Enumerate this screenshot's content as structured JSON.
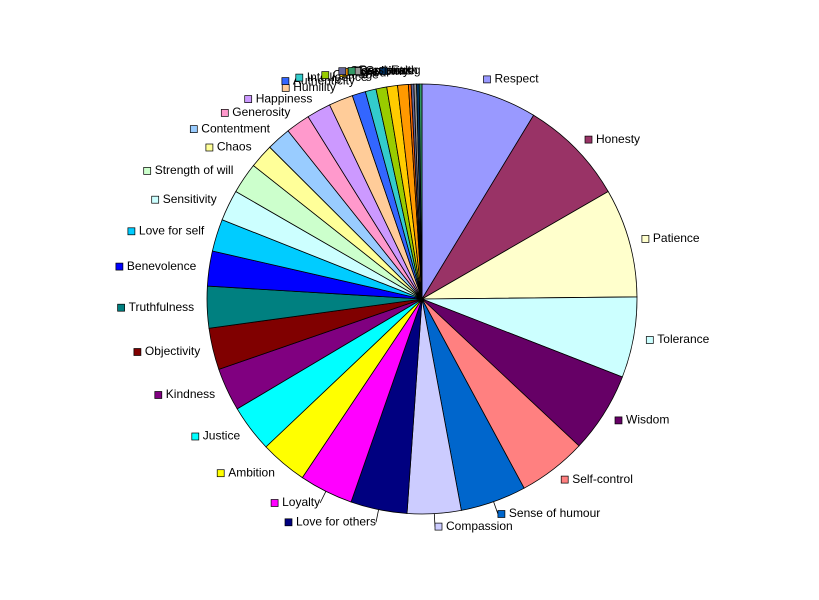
{
  "chart_data": {
    "type": "pie",
    "title": "",
    "slices": [
      {
        "label": "Respect",
        "value": 8.6,
        "color": "#9999ff"
      },
      {
        "label": "Honesty",
        "value": 7.9,
        "color": "#993366"
      },
      {
        "label": "Patience",
        "value": 8.1,
        "color": "#ffffcc"
      },
      {
        "label": "Tolerance",
        "value": 6.0,
        "color": "#ccffff"
      },
      {
        "label": "Wisdom",
        "value": 6.0,
        "color": "#660066"
      },
      {
        "label": "Self-control",
        "value": 5.1,
        "color": "#ff8080"
      },
      {
        "label": "Sense of humour",
        "value": 4.9,
        "color": "#0066cc"
      },
      {
        "label": "Compassion",
        "value": 4.0,
        "color": "#ccccff"
      },
      {
        "label": "Love for others",
        "value": 4.2,
        "color": "#000080"
      },
      {
        "label": "Loyalty",
        "value": 4.0,
        "color": "#ff00ff"
      },
      {
        "label": "Ambition",
        "value": 3.5,
        "color": "#ffff00"
      },
      {
        "label": "Justice",
        "value": 3.5,
        "color": "#00ffff"
      },
      {
        "label": "Kindness",
        "value": 3.2,
        "color": "#800080"
      },
      {
        "label": "Objectivity",
        "value": 3.1,
        "color": "#800000"
      },
      {
        "label": "Truthfulness",
        "value": 3.1,
        "color": "#008080"
      },
      {
        "label": "Benevolence",
        "value": 2.6,
        "color": "#0000ff"
      },
      {
        "label": "Love for self",
        "value": 2.4,
        "color": "#00ccff"
      },
      {
        "label": "Sensitivity",
        "value": 2.3,
        "color": "#ccffff"
      },
      {
        "label": "Strength of will",
        "value": 2.3,
        "color": "#ccffcc"
      },
      {
        "label": "Chaos",
        "value": 1.8,
        "color": "#ffff99"
      },
      {
        "label": "Contentment",
        "value": 1.8,
        "color": "#99ccff"
      },
      {
        "label": "Generosity",
        "value": 1.8,
        "color": "#ff99cc"
      },
      {
        "label": "Happiness",
        "value": 1.8,
        "color": "#cc99ff"
      },
      {
        "label": "Humility",
        "value": 1.8,
        "color": "#ffcc99"
      },
      {
        "label": "Authenticity",
        "value": 1.0,
        "color": "#3366ff"
      },
      {
        "label": "Intelligence",
        "value": 0.8,
        "color": "#33cccc"
      },
      {
        "label": "Courage",
        "value": 0.8,
        "color": "#99cc00"
      },
      {
        "label": "Honour",
        "value": 0.8,
        "color": "#ffcc00"
      },
      {
        "label": "Freedom",
        "value": 0.8,
        "color": "#ff9900"
      },
      {
        "label": "Creativity",
        "value": 0.2,
        "color": "#ff6600"
      },
      {
        "label": "Cleanliness",
        "value": 0.2,
        "color": "#666699"
      },
      {
        "label": "Gratitude",
        "value": 0.2,
        "color": "#969696"
      },
      {
        "label": "Faith",
        "value": 0.2,
        "color": "#003366"
      },
      {
        "label": "Persian rug",
        "value": 0.2,
        "color": "#339966"
      }
    ]
  }
}
